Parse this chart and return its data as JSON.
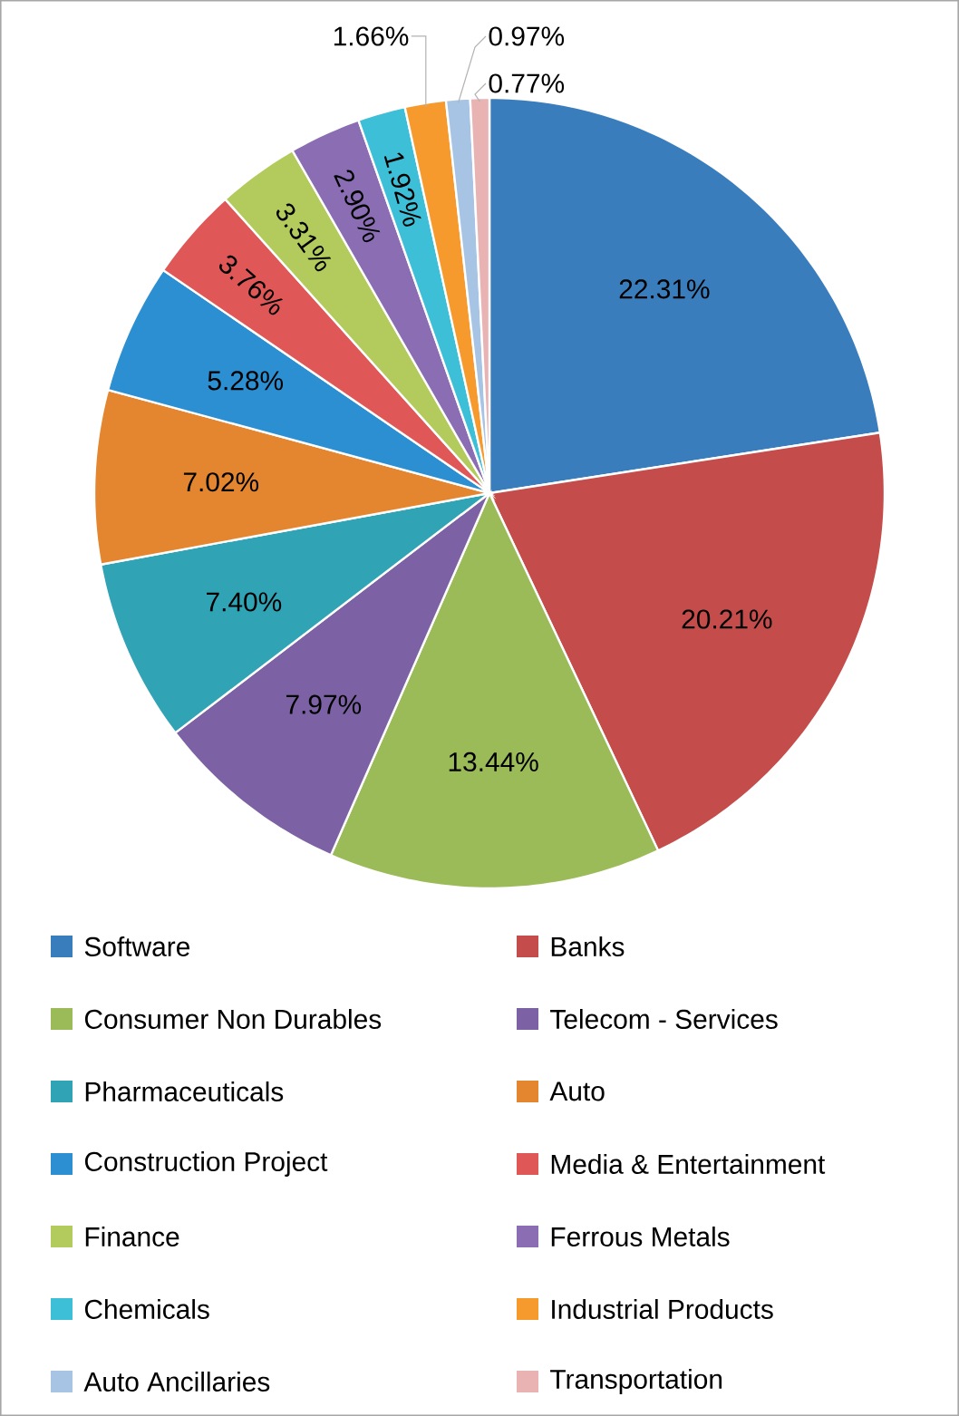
{
  "chart_data": {
    "type": "pie",
    "categories": [
      "Software",
      "Banks",
      "Consumer Non Durables",
      "Telecom - Services",
      "Pharmaceuticals",
      "Auto",
      "Construction Project",
      "Media & Entertainment",
      "Finance",
      "Ferrous Metals",
      "Chemicals",
      "Industrial Products",
      "Auto Ancillaries",
      "Transportation"
    ],
    "values": [
      22.31,
      20.21,
      13.44,
      7.97,
      7.4,
      7.02,
      5.28,
      3.76,
      3.31,
      2.9,
      1.92,
      1.66,
      0.97,
      0.77
    ],
    "value_labels": [
      "22.31%",
      "20.21%",
      "13.44%",
      "7.97%",
      "7.40%",
      "7.02%",
      "5.28%",
      "3.76%",
      "3.31%",
      "2.90%",
      "1.92%",
      "1.66%",
      "0.97%",
      "0.77%"
    ],
    "colors": [
      "#3a7dbd",
      "#c44c4a",
      "#9bbb59",
      "#7c62a4",
      "#30a3b5",
      "#e3862f",
      "#2c8fd1",
      "#e05757",
      "#b3cb5c",
      "#8b6db4",
      "#3ebfd8",
      "#f79a2e",
      "#a8c4e4",
      "#e9b3b3"
    ],
    "legend": "bottom"
  }
}
